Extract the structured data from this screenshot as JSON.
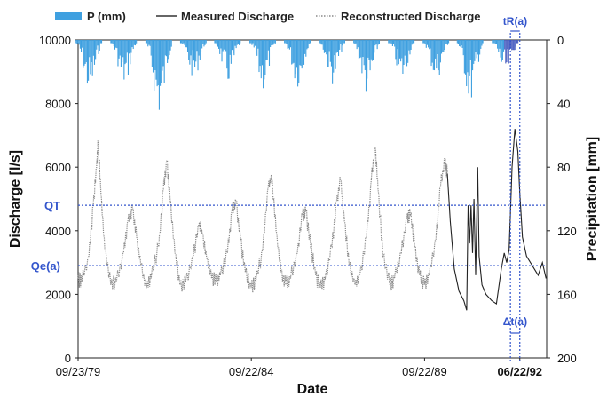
{
  "chart_data": {
    "type": "line",
    "xlabel": "Date",
    "ylabel_left": "Discharge [l/s]",
    "ylabel_right": "Precipitation [mm]",
    "ylim_left": [
      0,
      10000
    ],
    "ylim_right_inverted": [
      0,
      200
    ],
    "yticks_left": [
      "0",
      "2000",
      "4000",
      "6000",
      "8000",
      "10000"
    ],
    "yticks_right": [
      "0",
      "40",
      "80",
      "120",
      "160",
      "200"
    ],
    "xticks": [
      "09/23/79",
      "09/22/84",
      "09/22/89",
      "06/22/92"
    ],
    "x_start": "1979-09-23",
    "x_end": "1993-04-01",
    "legend": {
      "position": "top",
      "items": [
        "P (mm)",
        "Measured Discharge",
        "Reconstructed Discharge"
      ]
    },
    "series": [
      {
        "name": "Reconstructed Discharge",
        "style": "dotted",
        "points": [
          [
            "1979-09-23",
            2500
          ],
          [
            "1979-11-01",
            2400
          ],
          [
            "1980-01-15",
            3200
          ],
          [
            "1980-03-01",
            4800
          ],
          [
            "1980-04-05",
            6000
          ],
          [
            "1980-04-20",
            6800
          ],
          [
            "1980-05-20",
            5200
          ],
          [
            "1980-07-01",
            3400
          ],
          [
            "1980-09-01",
            2300
          ],
          [
            "1980-11-01",
            2400
          ],
          [
            "1981-01-15",
            3300
          ],
          [
            "1981-03-01",
            4300
          ],
          [
            "1981-04-20",
            4700
          ],
          [
            "1981-06-01",
            3800
          ],
          [
            "1981-07-15",
            2900
          ],
          [
            "1981-09-15",
            2200
          ],
          [
            "1981-11-01",
            2500
          ],
          [
            "1982-01-20",
            3500
          ],
          [
            "1982-03-10",
            5300
          ],
          [
            "1982-04-15",
            6200
          ],
          [
            "1982-05-20",
            5000
          ],
          [
            "1982-07-10",
            3300
          ],
          [
            "1982-09-01",
            2300
          ],
          [
            "1982-11-01",
            2400
          ],
          [
            "1983-01-20",
            3200
          ],
          [
            "1983-03-20",
            4200
          ],
          [
            "1983-04-25",
            3900
          ],
          [
            "1983-06-10",
            3100
          ],
          [
            "1983-08-01",
            2500
          ],
          [
            "1983-09-20",
            2400
          ],
          [
            "1983-11-01",
            2600
          ],
          [
            "1984-01-15",
            3300
          ],
          [
            "1984-03-01",
            4600
          ],
          [
            "1984-04-15",
            4900
          ],
          [
            "1984-06-01",
            3700
          ],
          [
            "1984-07-20",
            2700
          ],
          [
            "1984-09-20",
            2200
          ],
          [
            "1984-11-10",
            2400
          ],
          [
            "1985-01-20",
            3400
          ],
          [
            "1985-03-20",
            5400
          ],
          [
            "1985-04-25",
            5700
          ],
          [
            "1985-06-10",
            4000
          ],
          [
            "1985-08-01",
            2700
          ],
          [
            "1985-09-20",
            2300
          ],
          [
            "1985-11-10",
            2500
          ],
          [
            "1986-01-20",
            3300
          ],
          [
            "1986-03-15",
            4500
          ],
          [
            "1986-04-20",
            4600
          ],
          [
            "1986-06-10",
            3500
          ],
          [
            "1986-08-01",
            2600
          ],
          [
            "1986-09-20",
            2200
          ],
          [
            "1986-11-10",
            2500
          ],
          [
            "1987-01-20",
            3500
          ],
          [
            "1987-03-10",
            4900
          ],
          [
            "1987-04-20",
            5600
          ],
          [
            "1987-06-01",
            4300
          ],
          [
            "1987-07-20",
            2900
          ],
          [
            "1987-09-20",
            2300
          ],
          [
            "1987-11-10",
            2600
          ],
          [
            "1988-01-20",
            3800
          ],
          [
            "1988-03-10",
            5600
          ],
          [
            "1988-04-20",
            6600
          ],
          [
            "1988-05-20",
            5300
          ],
          [
            "1988-07-10",
            3200
          ],
          [
            "1988-09-20",
            2300
          ],
          [
            "1988-11-10",
            2500
          ],
          [
            "1989-01-20",
            3300
          ],
          [
            "1989-03-20",
            4400
          ],
          [
            "1989-04-25",
            4500
          ],
          [
            "1989-06-10",
            3500
          ],
          [
            "1989-08-01",
            2600
          ],
          [
            "1989-09-20",
            2300
          ],
          [
            "1989-11-10",
            2600
          ],
          [
            "1990-01-20",
            3700
          ],
          [
            "1990-03-10",
            5400
          ],
          [
            "1990-04-25",
            6200
          ],
          [
            "1990-05-20",
            5800
          ]
        ]
      },
      {
        "name": "Measured Discharge",
        "style": "solid",
        "points": [
          [
            "1990-05-20",
            5800
          ],
          [
            "1990-06-20",
            4300
          ],
          [
            "1990-08-01",
            2800
          ],
          [
            "1990-09-20",
            2100
          ],
          [
            "1990-11-10",
            1800
          ],
          [
            "1990-12-10",
            1500
          ],
          [
            "1990-12-25",
            4800
          ],
          [
            "1991-01-10",
            3600
          ],
          [
            "1991-01-25",
            4800
          ],
          [
            "1991-02-10",
            3300
          ],
          [
            "1991-02-25",
            5000
          ],
          [
            "1991-03-15",
            2600
          ],
          [
            "1991-04-05",
            6000
          ],
          [
            "1991-04-20",
            3200
          ],
          [
            "1991-05-20",
            2300
          ],
          [
            "1991-07-01",
            2000
          ],
          [
            "1991-09-01",
            1800
          ],
          [
            "1991-10-20",
            1700
          ],
          [
            "1991-12-10",
            2800
          ],
          [
            "1992-01-10",
            3300
          ],
          [
            "1992-02-05",
            3000
          ],
          [
            "1992-03-01",
            3400
          ],
          [
            "1992-04-01",
            6000
          ],
          [
            "1992-05-01",
            7200
          ],
          [
            "1992-06-01",
            6500
          ],
          [
            "1992-06-22",
            5200
          ],
          [
            "1992-07-20",
            3800
          ],
          [
            "1992-09-01",
            3200
          ],
          [
            "1992-11-01",
            2900
          ],
          [
            "1993-01-01",
            2600
          ],
          [
            "1993-02-15",
            3000
          ],
          [
            "1993-03-25",
            2500
          ]
        ]
      }
    ],
    "precipitation": {
      "name": "P (mm)",
      "axis": "right_inverted",
      "clusters": [
        {
          "center": "1980-01-15",
          "max": 35
        },
        {
          "center": "1981-01-15",
          "max": 30
        },
        {
          "center": "1982-01-20",
          "max": 50
        },
        {
          "center": "1983-01-20",
          "max": 25
        },
        {
          "center": "1984-01-15",
          "max": 28
        },
        {
          "center": "1985-01-20",
          "max": 32
        },
        {
          "center": "1986-01-20",
          "max": 30
        },
        {
          "center": "1987-01-20",
          "max": 28
        },
        {
          "center": "1988-01-20",
          "max": 36
        },
        {
          "center": "1989-01-20",
          "max": 27
        },
        {
          "center": "1990-01-20",
          "max": 26
        },
        {
          "center": "1991-01-15",
          "max": 40
        },
        {
          "center": "1992-01-20",
          "max": 24
        }
      ]
    },
    "reference_lines": [
      {
        "label": "QT",
        "value": 4800
      },
      {
        "label": "Qe(a)",
        "value": 2900
      }
    ],
    "annotations": {
      "tR": "tR(a)",
      "dt": "Δt(a)",
      "marker_date_1": "1992-03-15",
      "marker_date_2": "1992-06-22"
    }
  }
}
